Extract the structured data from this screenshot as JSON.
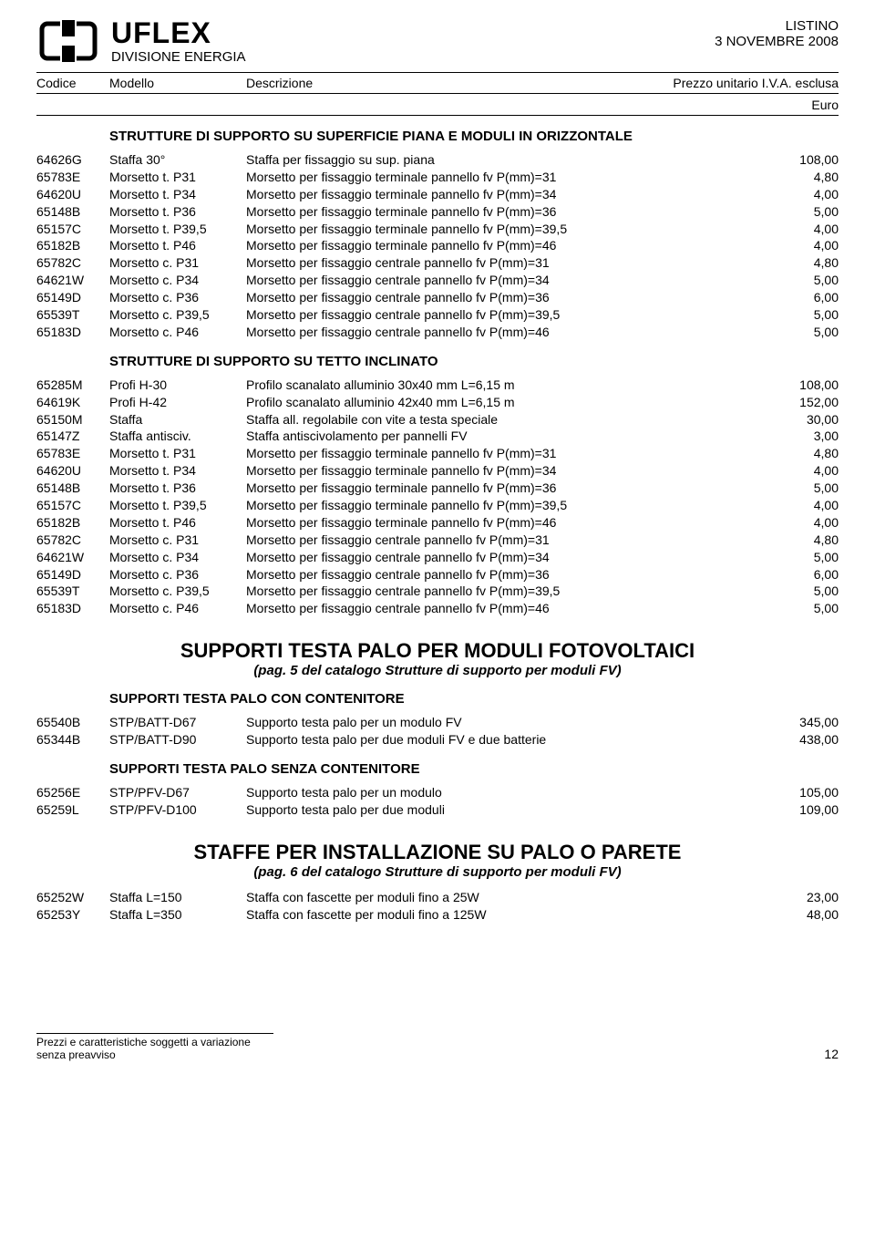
{
  "header": {
    "brand": "UFLEX",
    "division": "DIVISIONE ENERGIA",
    "listino": "LISTINO",
    "date": "3 NOVEMBRE 2008"
  },
  "columns": {
    "codice": "Codice",
    "modello": "Modello",
    "descrizione": "Descrizione",
    "prezzo": "Prezzo unitario I.V.A. esclusa",
    "euro": "Euro"
  },
  "sections": [
    {
      "title": "STRUTTURE DI SUPPORTO SU SUPERFICIE PIANA E MODULI IN ORIZZONTALE",
      "rows": [
        {
          "c": "64626G",
          "m": "Staffa 30°",
          "d": "Staffa per fissaggio su sup. piana",
          "p": "108,00"
        },
        {
          "c": "65783E",
          "m": "Morsetto t. P31",
          "d": "Morsetto per fissaggio terminale pannello fv P(mm)=31",
          "p": "4,80"
        },
        {
          "c": "64620U",
          "m": "Morsetto t. P34",
          "d": "Morsetto per fissaggio terminale pannello fv P(mm)=34",
          "p": "4,00"
        },
        {
          "c": "65148B",
          "m": "Morsetto t. P36",
          "d": "Morsetto per fissaggio terminale pannello fv P(mm)=36",
          "p": "5,00"
        },
        {
          "c": "65157C",
          "m": "Morsetto t. P39,5",
          "d": "Morsetto per fissaggio terminale pannello fv P(mm)=39,5",
          "p": "4,00"
        },
        {
          "c": "65182B",
          "m": "Morsetto t. P46",
          "d": "Morsetto per fissaggio terminale pannello fv P(mm)=46",
          "p": "4,00"
        },
        {
          "c": "65782C",
          "m": "Morsetto c. P31",
          "d": "Morsetto per fissaggio centrale pannello fv P(mm)=31",
          "p": "4,80"
        },
        {
          "c": "64621W",
          "m": "Morsetto c. P34",
          "d": "Morsetto per fissaggio centrale pannello fv P(mm)=34",
          "p": "5,00"
        },
        {
          "c": "65149D",
          "m": "Morsetto c. P36",
          "d": "Morsetto per fissaggio centrale pannello fv P(mm)=36",
          "p": "6,00"
        },
        {
          "c": "65539T",
          "m": "Morsetto c. P39,5",
          "d": "Morsetto per fissaggio centrale pannello fv P(mm)=39,5",
          "p": "5,00"
        },
        {
          "c": "65183D",
          "m": "Morsetto c. P46",
          "d": "Morsetto per fissaggio centrale pannello fv P(mm)=46",
          "p": "5,00"
        }
      ]
    },
    {
      "title": "STRUTTURE DI SUPPORTO SU TETTO INCLINATO",
      "rows": [
        {
          "c": "65285M",
          "m": "Profi H-30",
          "d": "Profilo scanalato alluminio 30x40 mm L=6,15 m",
          "p": "108,00"
        },
        {
          "c": "64619K",
          "m": "Profi H-42",
          "d": "Profilo scanalato alluminio 42x40 mm L=6,15 m",
          "p": "152,00"
        },
        {
          "c": "65150M",
          "m": "Staffa",
          "d": "Staffa all. regolabile con vite a testa speciale",
          "p": "30,00"
        },
        {
          "c": "65147Z",
          "m": "Staffa antisciv.",
          "d": "Staffa antiscivolamento per pannelli FV",
          "p": "3,00"
        },
        {
          "c": "65783E",
          "m": "Morsetto t. P31",
          "d": "Morsetto per fissaggio terminale pannello fv P(mm)=31",
          "p": "4,80"
        },
        {
          "c": "64620U",
          "m": "Morsetto t. P34",
          "d": "Morsetto per fissaggio terminale pannello fv P(mm)=34",
          "p": "4,00"
        },
        {
          "c": "65148B",
          "m": "Morsetto t. P36",
          "d": "Morsetto per fissaggio terminale pannello fv P(mm)=36",
          "p": "5,00"
        },
        {
          "c": "65157C",
          "m": "Morsetto t. P39,5",
          "d": "Morsetto per fissaggio terminale pannello fv P(mm)=39,5",
          "p": "4,00"
        },
        {
          "c": "65182B",
          "m": "Morsetto t. P46",
          "d": "Morsetto per fissaggio terminale pannello fv P(mm)=46",
          "p": "4,00"
        },
        {
          "c": "65782C",
          "m": "Morsetto c. P31",
          "d": "Morsetto per fissaggio centrale pannello fv P(mm)=31",
          "p": "4,80"
        },
        {
          "c": "64621W",
          "m": "Morsetto c. P34",
          "d": "Morsetto per fissaggio centrale pannello fv P(mm)=34",
          "p": "5,00"
        },
        {
          "c": "65149D",
          "m": "Morsetto c. P36",
          "d": "Morsetto per fissaggio centrale pannello fv P(mm)=36",
          "p": "6,00"
        },
        {
          "c": "65539T",
          "m": "Morsetto c. P39,5",
          "d": "Morsetto per fissaggio centrale pannello fv P(mm)=39,5",
          "p": "5,00"
        },
        {
          "c": "65183D",
          "m": "Morsetto c. P46",
          "d": "Morsetto per fissaggio centrale pannello fv P(mm)=46",
          "p": "5,00"
        }
      ]
    }
  ],
  "group1": {
    "title": "SUPPORTI TESTA PALO PER MODULI FOTOVOLTAICI",
    "ref": "(pag. 5 del catalogo Strutture di supporto per moduli FV)",
    "sections": [
      {
        "title": "SUPPORTI TESTA PALO CON CONTENITORE",
        "rows": [
          {
            "c": "65540B",
            "m": "STP/BATT-D67",
            "d": "Supporto testa palo per un modulo FV",
            "p": "345,00"
          },
          {
            "c": "65344B",
            "m": "STP/BATT-D90",
            "d": "Supporto testa palo per due moduli FV e due batterie",
            "p": "438,00"
          }
        ]
      },
      {
        "title": "SUPPORTI TESTA PALO SENZA CONTENITORE",
        "rows": [
          {
            "c": "65256E",
            "m": "STP/PFV-D67",
            "d": "Supporto testa palo per un modulo",
            "p": "105,00"
          },
          {
            "c": "65259L",
            "m": "STP/PFV-D100",
            "d": "Supporto testa palo per due moduli",
            "p": "109,00"
          }
        ]
      }
    ]
  },
  "group2": {
    "title": "STAFFE PER INSTALLAZIONE SU PALO O PARETE",
    "ref": "(pag. 6 del catalogo Strutture di supporto per moduli FV)",
    "rows": [
      {
        "c": "65252W",
        "m": "Staffa L=150",
        "d": "Staffa con fascette per moduli fino a 25W",
        "p": "23,00"
      },
      {
        "c": "65253Y",
        "m": "Staffa L=350",
        "d": "Staffa con fascette per moduli fino a 125W",
        "p": "48,00"
      }
    ]
  },
  "footer": {
    "note": "Prezzi e caratteristiche soggetti a variazione senza preavviso",
    "page": "12"
  }
}
